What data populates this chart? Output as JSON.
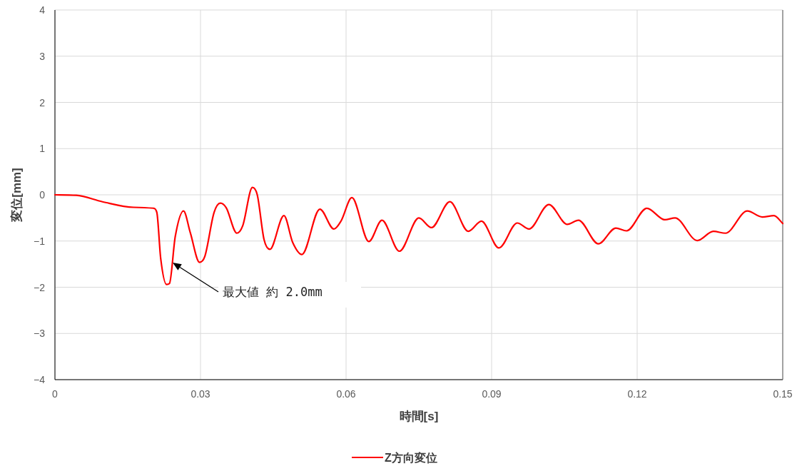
{
  "chart_data": {
    "type": "line",
    "xlabel": "時間[s]",
    "ylabel": "変位[mm]",
    "xlim": [
      0,
      0.15
    ],
    "ylim": [
      -4,
      4
    ],
    "xticks": [
      0,
      0.03,
      0.06,
      0.09,
      0.12,
      0.15
    ],
    "yticks": [
      -4,
      -3,
      -2,
      -1,
      0,
      1,
      2,
      3,
      4
    ],
    "grid": true,
    "legend": "bottom",
    "marker": "none",
    "line_style": "solid",
    "annotations": [
      "最大値 約 2.0mm"
    ],
    "series": [
      {
        "name": "Z方向変位",
        "color": "#ff0000",
        "x": [
          0,
          0.0044,
          0.0098,
          0.0162,
          0.0203,
          0.021,
          0.0218,
          0.023,
          0.0236,
          0.0248,
          0.0265,
          0.0279,
          0.0298,
          0.0309,
          0.0328,
          0.0341,
          0.0353,
          0.0375,
          0.0387,
          0.0407,
          0.0417,
          0.0431,
          0.0443,
          0.0472,
          0.049,
          0.0509,
          0.0546,
          0.0575,
          0.059,
          0.0612,
          0.0647,
          0.0674,
          0.071,
          0.075,
          0.0776,
          0.0814,
          0.0852,
          0.0879,
          0.0915,
          0.0953,
          0.0977,
          0.1018,
          0.1056,
          0.1079,
          0.112,
          0.1156,
          0.1178,
          0.122,
          0.1257,
          0.1278,
          0.1324,
          0.1357,
          0.1382,
          0.1427,
          0.1458,
          0.1482,
          0.15
        ],
        "values": [
          0,
          -0.01,
          -0.15,
          -0.27,
          -0.29,
          -0.38,
          -1.38,
          -1.94,
          -1.92,
          -0.9,
          -0.35,
          -0.82,
          -1.46,
          -1.33,
          -0.38,
          -0.18,
          -0.28,
          -0.83,
          -0.67,
          0.16,
          0,
          -0.97,
          -1.18,
          -0.45,
          -1.03,
          -1.29,
          -0.31,
          -0.74,
          -0.56,
          -0.06,
          -1.01,
          -0.55,
          -1.22,
          -0.5,
          -0.71,
          -0.15,
          -0.79,
          -0.57,
          -1.15,
          -0.61,
          -0.74,
          -0.21,
          -0.64,
          -0.55,
          -1.06,
          -0.72,
          -0.78,
          -0.29,
          -0.54,
          -0.5,
          -0.99,
          -0.79,
          -0.83,
          -0.35,
          -0.48,
          -0.45,
          -0.62
        ]
      }
    ]
  }
}
